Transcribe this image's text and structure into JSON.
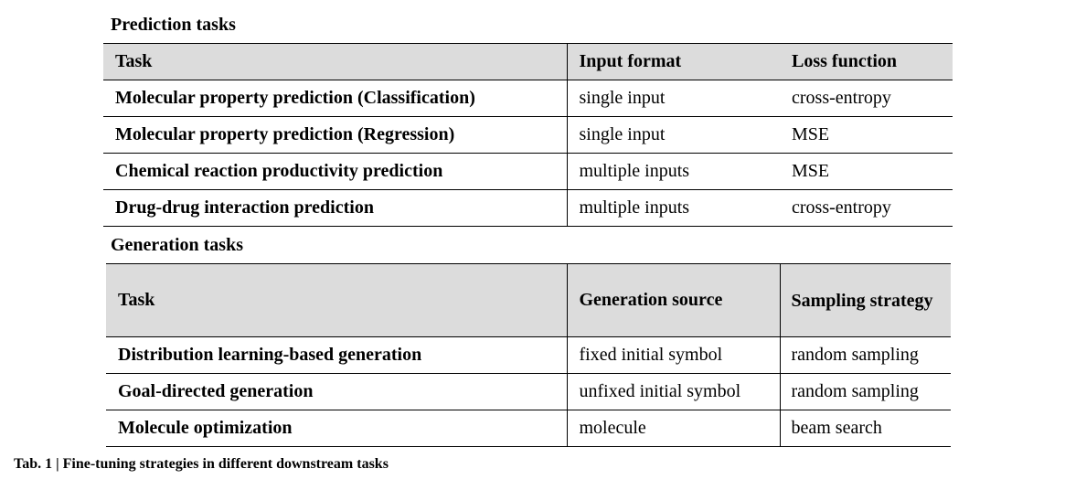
{
  "prediction": {
    "title": "Prediction tasks",
    "headers": [
      "Task",
      "Input format",
      "Loss function"
    ],
    "rows": [
      [
        "Molecular property prediction (Classification)",
        "single input",
        "cross-entropy"
      ],
      [
        "Molecular property prediction (Regression)",
        "single input",
        "MSE"
      ],
      [
        "Chemical reaction productivity prediction",
        "multiple inputs",
        "MSE"
      ],
      [
        "Drug-drug interaction prediction",
        "multiple inputs",
        "cross-entropy"
      ]
    ]
  },
  "generation": {
    "title": "Generation tasks",
    "headers": [
      "Task",
      "Generation source",
      "Sampling strategy"
    ],
    "rows": [
      [
        "Distribution learning-based generation",
        "fixed initial symbol",
        "random sampling"
      ],
      [
        "Goal-directed generation",
        "unfixed initial symbol",
        "random sampling"
      ],
      [
        "Molecule optimization",
        "molecule",
        "beam search"
      ]
    ]
  },
  "caption": "Tab. 1 | Fine-tuning strategies in different downstream tasks"
}
